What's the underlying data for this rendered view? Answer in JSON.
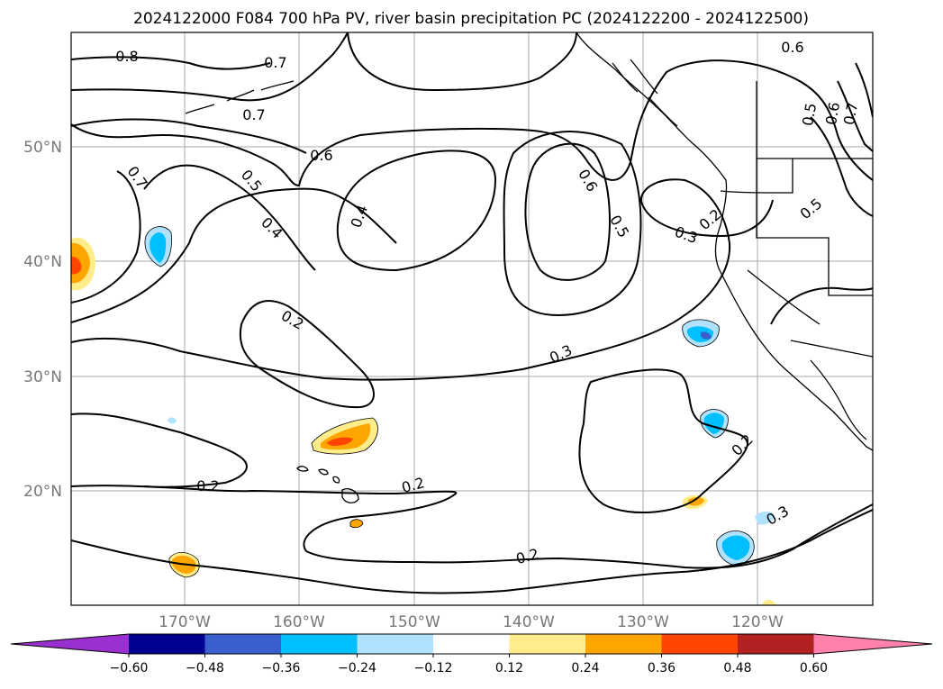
{
  "title": "2024122000 F084 700 hPa PV, river basin precipitation PC (2024122200 - 2024122500)",
  "map": {
    "lat_labels": [
      "50°N",
      "40°N",
      "30°N",
      "20°N"
    ],
    "lon_labels": [
      "170°W",
      "160°W",
      "150°W",
      "140°W",
      "130°W",
      "120°W"
    ],
    "gridline_color": "#aaaaaa",
    "contour_labels": [
      "0.8",
      "0.7",
      "0.7",
      "0.6",
      "0.6",
      "0.5",
      "0.6",
      "0.7",
      "0.7",
      "0.5",
      "0.4",
      "0.4",
      "0.6",
      "0.5",
      "0.5",
      "0.3",
      "0.2",
      "0.2",
      "0.3",
      "0.2",
      "0.2",
      "0.2",
      "0.2",
      "0.3"
    ]
  },
  "colorbar": {
    "colors": [
      "#9b30d0",
      "#000090",
      "#3a5fcd",
      "#00bfff",
      "#b0e2ff",
      "#ffffff",
      "#ffec8b",
      "#ffa500",
      "#ff4500",
      "#b22222",
      "#ff82ab"
    ],
    "ticks": [
      "−0.60",
      "−0.48",
      "−0.36",
      "−0.24",
      "−0.12",
      "0.12",
      "0.24",
      "0.36",
      "0.48",
      "0.60"
    ]
  }
}
